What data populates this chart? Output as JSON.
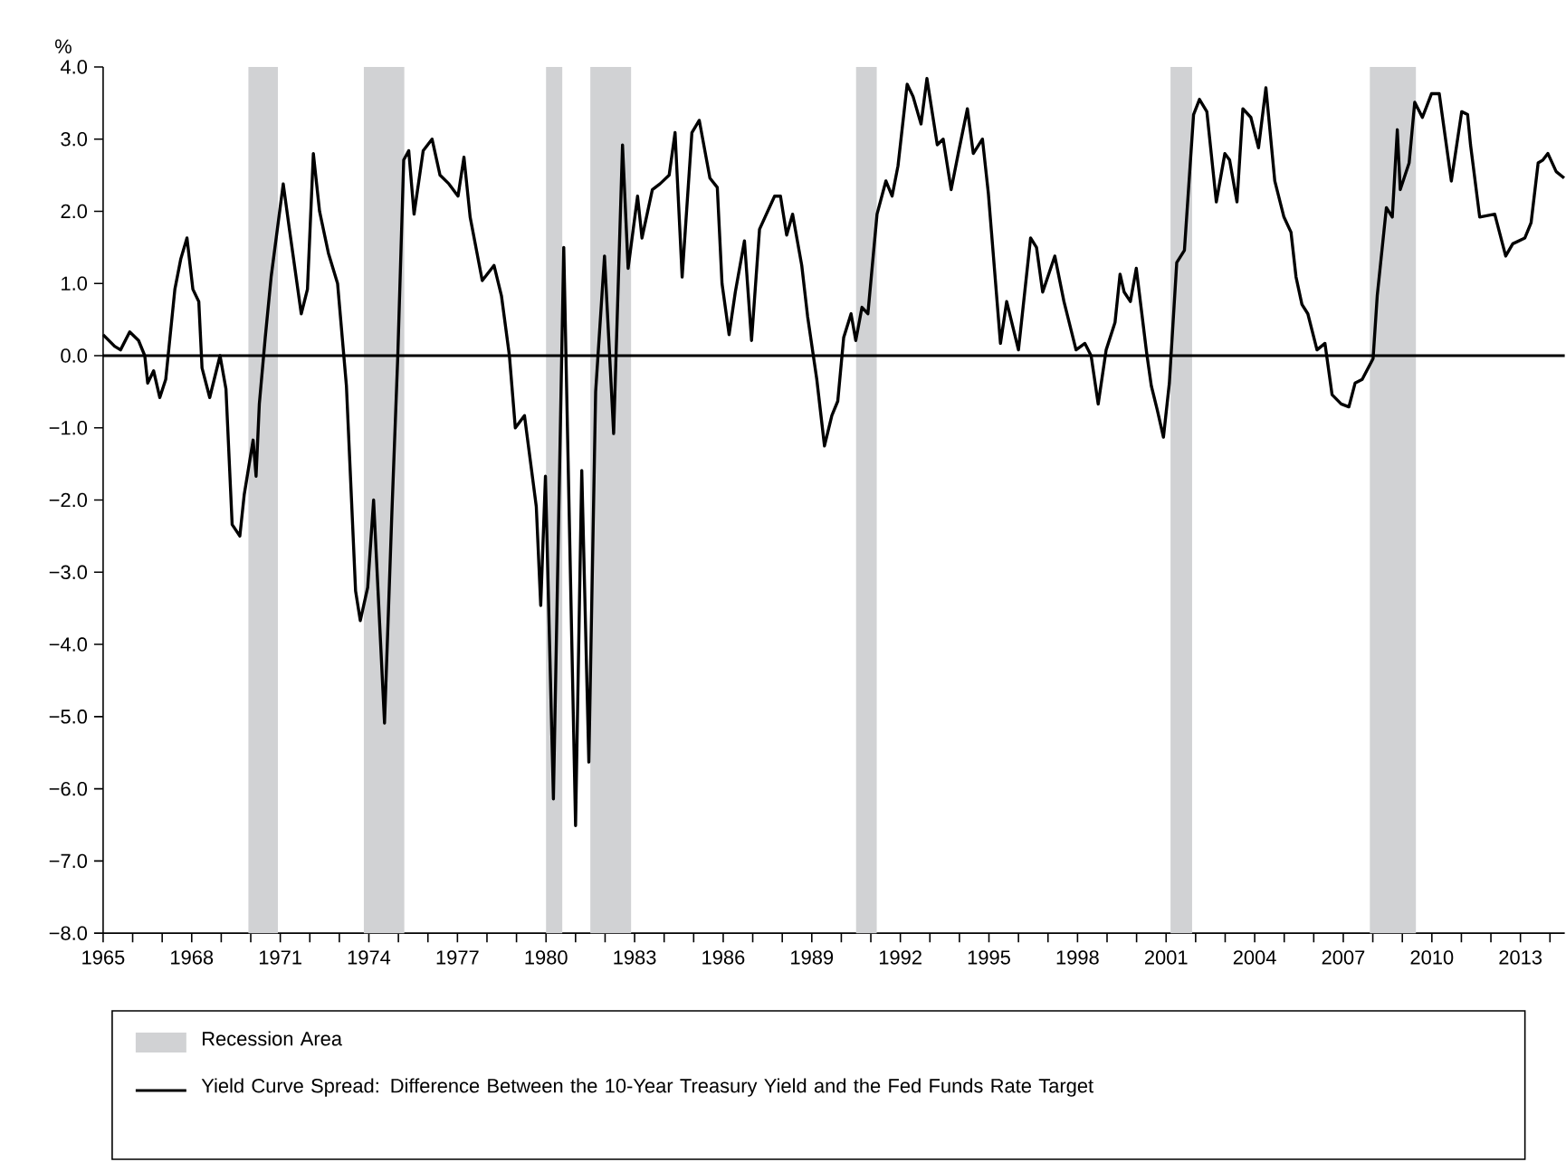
{
  "chart_data": {
    "type": "line",
    "ylabel": "%",
    "xlim": [
      1965,
      2014.5
    ],
    "ylim": [
      -8,
      4
    ],
    "xticks": [
      1965,
      {
        "value": 1966,
        "label": null
      },
      {
        "value": 1967,
        "label": null
      },
      1968,
      {
        "value": 1969,
        "label": null
      },
      {
        "value": 1970,
        "label": null
      },
      1971,
      {
        "value": 1972,
        "label": null
      },
      {
        "value": 1973,
        "label": null
      },
      1974,
      {
        "value": 1975,
        "label": null
      },
      {
        "value": 1976,
        "label": null
      },
      1977,
      {
        "value": 1978,
        "label": null
      },
      {
        "value": 1979,
        "label": null
      },
      1980,
      {
        "value": 1981,
        "label": null
      },
      {
        "value": 1982,
        "label": null
      },
      1983,
      {
        "value": 1984,
        "label": null
      },
      {
        "value": 1985,
        "label": null
      },
      1986,
      {
        "value": 1987,
        "label": null
      },
      {
        "value": 1988,
        "label": null
      },
      1989,
      {
        "value": 1990,
        "label": null
      },
      {
        "value": 1991,
        "label": null
      },
      1992,
      {
        "value": 1993,
        "label": null
      },
      {
        "value": 1994,
        "label": null
      },
      1995,
      {
        "value": 1996,
        "label": null
      },
      {
        "value": 1997,
        "label": null
      },
      1998,
      {
        "value": 1999,
        "label": null
      },
      {
        "value": 2000,
        "label": null
      },
      2001,
      {
        "value": 2002,
        "label": null
      },
      {
        "value": 2003,
        "label": null
      },
      2004,
      {
        "value": 2005,
        "label": null
      },
      {
        "value": 2006,
        "label": null
      },
      2007,
      {
        "value": 2008,
        "label": null
      },
      {
        "value": 2009,
        "label": null
      },
      2010,
      {
        "value": 2011,
        "label": null
      },
      {
        "value": 2012,
        "label": null
      },
      2013,
      {
        "value": 2014,
        "label": null
      }
    ],
    "yticks": [
      {
        "value": -8,
        "label": "−8.0"
      },
      {
        "value": -7,
        "label": "−7.0"
      },
      {
        "value": -6,
        "label": "−6.0"
      },
      {
        "value": -5,
        "label": "−5.0"
      },
      {
        "value": -4,
        "label": "−4.0"
      },
      {
        "value": -3,
        "label": "−3.0"
      },
      {
        "value": -2,
        "label": "−2.0"
      },
      {
        "value": -1,
        "label": "−1.0"
      },
      {
        "value": 0,
        "label": "0.0"
      },
      {
        "value": 1,
        "label": "1.0"
      },
      {
        "value": 2,
        "label": "2.0"
      },
      {
        "value": 3,
        "label": "3.0"
      },
      {
        "value": 4,
        "label": "4.0"
      }
    ],
    "grid": false,
    "legend": "bottom",
    "marker": "none",
    "line_style": "solid",
    "ref_lines": [
      {
        "axis": "y",
        "value": 0,
        "color": "#000000"
      }
    ],
    "bands": [
      {
        "axis": "x",
        "from": 1969.92,
        "to": 1970.92,
        "label": "Recession Area",
        "color": "#d1d2d4"
      },
      {
        "axis": "x",
        "from": 1973.83,
        "to": 1975.2,
        "color": "#d1d2d4"
      },
      {
        "axis": "x",
        "from": 1980.0,
        "to": 1980.55,
        "color": "#d1d2d4"
      },
      {
        "axis": "x",
        "from": 1981.5,
        "to": 1982.88,
        "color": "#d1d2d4"
      },
      {
        "axis": "x",
        "from": 1990.5,
        "to": 1991.2,
        "color": "#d1d2d4"
      },
      {
        "axis": "x",
        "from": 2001.15,
        "to": 2001.88,
        "color": "#d1d2d4"
      },
      {
        "axis": "x",
        "from": 2007.9,
        "to": 2009.46,
        "color": "#d1d2d4"
      }
    ],
    "series": [
      {
        "name": "Yield Curve Spread: Difference Between the 10-Year Treasury Yield and the Fed Funds Rate Target",
        "color": "#000000",
        "x": [
          1965.0,
          1965.39,
          1965.59,
          1965.9,
          1966.2,
          1966.41,
          1966.51,
          1966.71,
          1966.92,
          1967.12,
          1967.43,
          1967.63,
          1967.84,
          1968.04,
          1968.24,
          1968.35,
          1968.61,
          1968.96,
          1969.16,
          1969.37,
          1969.63,
          1969.78,
          1970.08,
          1970.18,
          1970.29,
          1970.49,
          1970.69,
          1971.1,
          1971.31,
          1971.71,
          1971.92,
          1972.12,
          1972.33,
          1972.63,
          1972.94,
          1973.24,
          1973.55,
          1973.71,
          1973.96,
          1974.16,
          1974.53,
          1974.78,
          1974.98,
          1975.18,
          1975.35,
          1975.53,
          1975.84,
          1976.14,
          1976.41,
          1976.71,
          1977.02,
          1977.22,
          1977.43,
          1977.84,
          1978.24,
          1978.49,
          1978.76,
          1978.96,
          1979.27,
          1979.67,
          1979.82,
          1979.98,
          1980.25,
          1980.6,
          1981.0,
          1981.21,
          1981.45,
          1981.68,
          1981.98,
          1982.29,
          1982.59,
          1982.78,
          1983.1,
          1983.25,
          1983.6,
          1983.86,
          1984.17,
          1984.37,
          1984.61,
          1984.94,
          1985.19,
          1985.55,
          1985.8,
          1985.96,
          1986.2,
          1986.41,
          1986.72,
          1986.96,
          1987.23,
          1987.74,
          1987.94,
          1988.15,
          1988.35,
          1988.66,
          1988.86,
          1989.17,
          1989.43,
          1989.68,
          1989.88,
          1990.08,
          1990.33,
          1990.49,
          1990.7,
          1990.9,
          1991.21,
          1991.51,
          1991.72,
          1991.92,
          1992.23,
          1992.43,
          1992.7,
          1992.9,
          1993.25,
          1993.45,
          1993.72,
          1993.96,
          1994.27,
          1994.47,
          1994.78,
          1994.98,
          1995.39,
          1995.6,
          1996.0,
          1996.41,
          1996.61,
          1996.82,
          1997.23,
          1997.54,
          1997.95,
          1998.25,
          1998.46,
          1998.7,
          1998.97,
          1999.27,
          1999.44,
          1999.58,
          1999.79,
          1999.99,
          2000.34,
          2000.5,
          2000.7,
          2000.91,
          2001.11,
          2001.36,
          2001.62,
          2001.93,
          2002.13,
          2002.38,
          2002.7,
          2002.99,
          2003.15,
          2003.4,
          2003.6,
          2003.87,
          2004.13,
          2004.38,
          2004.68,
          2004.99,
          2005.23,
          2005.4,
          2005.6,
          2005.8,
          2006.11,
          2006.38,
          2006.62,
          2006.93,
          2007.19,
          2007.4,
          2007.64,
          2008.01,
          2008.15,
          2008.46,
          2008.66,
          2008.83,
          2008.93,
          2009.23,
          2009.42,
          2009.68,
          2009.99,
          2010.25,
          2010.66,
          2011.01,
          2011.21,
          2011.31,
          2011.62,
          2012.13,
          2012.5,
          2012.74,
          2013.15,
          2013.36,
          2013.6,
          2013.76,
          2013.93,
          2014.21,
          2014.48
        ],
        "values": [
          0.29,
          0.13,
          0.08,
          0.33,
          0.21,
          0.0,
          -0.38,
          -0.21,
          -0.58,
          -0.33,
          0.92,
          1.34,
          1.63,
          0.92,
          0.75,
          -0.17,
          -0.58,
          0.0,
          -0.46,
          -2.34,
          -2.5,
          -1.92,
          -1.17,
          -1.67,
          -0.67,
          0.25,
          1.09,
          2.38,
          1.75,
          0.58,
          0.92,
          2.8,
          2.0,
          1.42,
          1.0,
          -0.42,
          -3.26,
          -3.67,
          -3.21,
          -2.0,
          -5.09,
          -2.17,
          0.0,
          2.71,
          2.84,
          1.96,
          2.84,
          3.0,
          2.5,
          2.38,
          2.21,
          2.75,
          1.92,
          1.04,
          1.25,
          0.83,
          0.0,
          -1.0,
          -0.83,
          -2.09,
          -3.46,
          -1.67,
          -6.14,
          1.5,
          -6.51,
          -1.59,
          -5.63,
          -0.5,
          1.38,
          -1.08,
          2.92,
          1.21,
          2.21,
          1.63,
          2.3,
          2.38,
          2.5,
          3.09,
          1.09,
          3.09,
          3.26,
          2.46,
          2.33,
          1.0,
          0.29,
          0.88,
          1.59,
          0.21,
          1.75,
          2.21,
          2.21,
          1.67,
          1.96,
          1.25,
          0.54,
          -0.33,
          -1.25,
          -0.83,
          -0.63,
          0.25,
          0.58,
          0.21,
          0.67,
          0.58,
          1.96,
          2.42,
          2.21,
          2.63,
          3.76,
          3.59,
          3.21,
          3.84,
          2.92,
          3.0,
          2.3,
          2.8,
          3.42,
          2.8,
          3.0,
          2.25,
          0.17,
          0.75,
          0.08,
          1.63,
          1.5,
          0.88,
          1.38,
          0.75,
          0.08,
          0.17,
          0.0,
          -0.67,
          0.08,
          0.46,
          1.13,
          0.88,
          0.75,
          1.21,
          0.04,
          -0.42,
          -0.75,
          -1.13,
          -0.38,
          1.29,
          1.46,
          3.34,
          3.55,
          3.38,
          2.13,
          2.8,
          2.71,
          2.13,
          3.42,
          3.3,
          2.88,
          3.71,
          2.42,
          1.92,
          1.71,
          1.09,
          0.71,
          0.58,
          0.08,
          0.17,
          -0.54,
          -0.67,
          -0.71,
          -0.38,
          -0.33,
          -0.04,
          0.83,
          2.05,
          1.92,
          3.13,
          2.3,
          2.67,
          3.51,
          3.3,
          3.63,
          3.63,
          2.42,
          3.38,
          3.34,
          2.92,
          1.92,
          1.96,
          1.38,
          1.55,
          1.63,
          1.84,
          2.67,
          2.71,
          2.8,
          2.55,
          2.46
        ]
      }
    ]
  }
}
